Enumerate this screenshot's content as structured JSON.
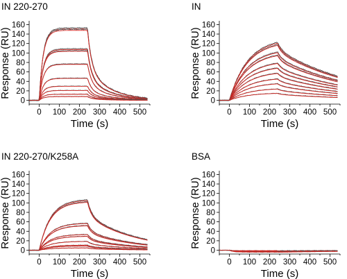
{
  "colors": {
    "data_trace": "#555555",
    "fit_trace": "#e0201b",
    "axis": "#000000"
  },
  "chart_data": [
    {
      "type": "line",
      "title": "IN 220-270",
      "xlabel": "Time (s)",
      "ylabel": "Response (RU)",
      "xlim": [
        -50,
        550
      ],
      "ylim": [
        -8,
        165
      ],
      "xticks": [
        "0",
        "100",
        "200",
        "300",
        "400",
        "500"
      ],
      "yticks": [
        "0",
        "20",
        "40",
        "60",
        "80",
        "100",
        "120",
        "140",
        "160"
      ],
      "injection_end_s": 240,
      "series_rmax": [
        153,
        150,
        109,
        105,
        77,
        47,
        30,
        21,
        13,
        8
      ],
      "assoc_rate_per_s": 0.05,
      "dissoc_rate_per_s": 0.009,
      "dissoc_fast_fraction": 0.55,
      "dissoc_fast_rate_per_s": 0.05,
      "grid": false
    },
    {
      "type": "line",
      "title": "IN",
      "xlabel": "Time (s)",
      "ylabel": "Response (RU)",
      "xlim": [
        -50,
        550
      ],
      "ylim": [
        -8,
        165
      ],
      "xticks": [
        "0",
        "100",
        "200",
        "300",
        "400",
        "500"
      ],
      "yticks": [
        "0",
        "20",
        "40",
        "60",
        "80",
        "100",
        "120",
        "140",
        "160"
      ],
      "injection_end_s": 240,
      "series_rmax": [
        132,
        127,
        110,
        103,
        85,
        74,
        62,
        49,
        38,
        26,
        16
      ],
      "assoc_rate_per_s": 0.011,
      "dissoc_rate_per_s": 0.0025,
      "dissoc_fast_fraction": 0.12,
      "dissoc_fast_rate_per_s": 0.05,
      "grid": false
    },
    {
      "type": "line",
      "title": "IN 220-270/K258A",
      "xlabel": "Time (s)",
      "ylabel": "Response (RU)",
      "xlim": [
        -50,
        550
      ],
      "ylim": [
        -8,
        165
      ],
      "xticks": [
        "0",
        "100",
        "200",
        "300",
        "400",
        "500"
      ],
      "yticks": [
        "0",
        "20",
        "40",
        "60",
        "80",
        "100",
        "120",
        "140",
        "160"
      ],
      "injection_end_s": 240,
      "series_rmax": [
        108,
        104,
        58,
        53,
        34,
        30,
        19,
        11,
        9,
        5
      ],
      "assoc_rate_per_s": 0.018,
      "dissoc_rate_per_s": 0.004,
      "dissoc_fast_fraction": 0.3,
      "dissoc_fast_rate_per_s": 0.05,
      "grid": false
    },
    {
      "type": "line",
      "title": "BSA",
      "xlabel": "Time (s)",
      "ylabel": "Response (RU)",
      "xlim": [
        -50,
        550
      ],
      "ylim": [
        -8,
        165
      ],
      "xticks": [
        "0",
        "100",
        "200",
        "300",
        "400",
        "500"
      ],
      "yticks": [
        "0",
        "20",
        "40",
        "60",
        "80",
        "100",
        "120",
        "140",
        "160"
      ],
      "injection_end_s": 240,
      "series_rmax": [
        -1,
        -2,
        -3,
        -4
      ],
      "assoc_rate_per_s": 0.05,
      "dissoc_rate_per_s": 0.002,
      "dissoc_fast_fraction": 0.0,
      "dissoc_fast_rate_per_s": 0.05,
      "grid": false
    }
  ]
}
